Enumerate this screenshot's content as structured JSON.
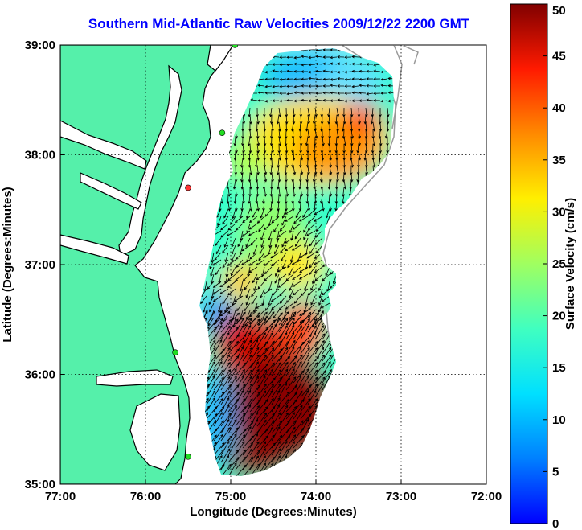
{
  "title": "Southern Mid-Atlantic Raw Velocities 2009/12/22 2200 GMT",
  "colors": {
    "title": "#0000ff",
    "land": "#55f0aa",
    "coast": "#000000",
    "bathymetry": "#9a9a9a",
    "grid": "#000000",
    "station": "#22dd22",
    "station_alt": "#ff3333",
    "vector": "#000000"
  },
  "map": {
    "xlabel": "Longitude (Degrees:Minutes)",
    "ylabel": "Latitude (Degrees:Minutes)",
    "lon_range": [
      -77,
      -72
    ],
    "lat_range": [
      35,
      39
    ],
    "x_ticks": [
      {
        "value": -77,
        "label": "77:00"
      },
      {
        "value": -76,
        "label": "76:00"
      },
      {
        "value": -75,
        "label": "75:00"
      },
      {
        "value": -74,
        "label": "74:00"
      },
      {
        "value": -73,
        "label": "73:00"
      },
      {
        "value": -72,
        "label": "72:00"
      }
    ],
    "y_ticks": [
      {
        "value": 35,
        "label": "35:00"
      },
      {
        "value": 36,
        "label": "36:00"
      },
      {
        "value": 37,
        "label": "37:00"
      },
      {
        "value": 38,
        "label": "38:00"
      },
      {
        "value": 39,
        "label": "39:00"
      }
    ],
    "grid": "dotted"
  },
  "colorbar": {
    "label": "Surface Velocity (cm/s)",
    "min": 0,
    "max": 50,
    "ticks": [
      {
        "value": 0,
        "label": "0"
      },
      {
        "value": 5,
        "label": "5"
      },
      {
        "value": 10,
        "label": "10"
      },
      {
        "value": 15,
        "label": "15"
      },
      {
        "value": 20,
        "label": "20"
      },
      {
        "value": 25,
        "label": "25"
      },
      {
        "value": 30,
        "label": "30"
      },
      {
        "value": 35,
        "label": "35"
      },
      {
        "value": 40,
        "label": "40"
      },
      {
        "value": 45,
        "label": "45"
      },
      {
        "value": 50,
        "label": "50"
      }
    ],
    "colormap": "jet"
  },
  "stations": [
    {
      "lon": -74.95,
      "lat": 39.0,
      "color": "station"
    },
    {
      "lon": -75.1,
      "lat": 38.2,
      "color": "station"
    },
    {
      "lon": -75.5,
      "lat": 37.7,
      "color": "station_alt"
    },
    {
      "lon": -75.65,
      "lat": 36.2,
      "color": "station"
    },
    {
      "lon": -75.5,
      "lat": 35.25,
      "color": "station"
    }
  ]
}
